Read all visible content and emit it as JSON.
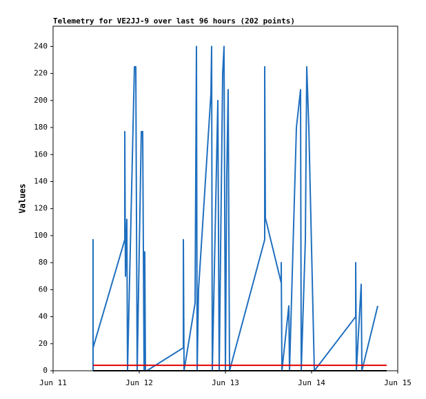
{
  "chart_data": {
    "type": "line",
    "title": "Telemetry for VE2JJ-9 over last 96 hours (202 points)",
    "y_label": "Values",
    "xlim": [
      11,
      15
    ],
    "xticks": [
      {
        "value": 11,
        "label": "Jun 11"
      },
      {
        "value": 12,
        "label": "Jun 12"
      },
      {
        "value": 13,
        "label": "Jun 13"
      },
      {
        "value": 14,
        "label": "Jun 14"
      },
      {
        "value": 15,
        "label": "Jun 15"
      }
    ],
    "ylim": [
      0,
      255
    ],
    "yticks": [
      0,
      20,
      40,
      60,
      80,
      100,
      120,
      140,
      160,
      180,
      200,
      220,
      240
    ],
    "grid": false,
    "series": [
      {
        "color": "#1f6fbf",
        "x": [
          11.464,
          11.464,
          11.464,
          11.832,
          11.832,
          11.84,
          11.856,
          11.864,
          11.944,
          11.96,
          11.976,
          12.024,
          12.04,
          12.056,
          12.064,
          12.072,
          12.088,
          12.512,
          12.512,
          12.52,
          12.648,
          12.664,
          12.672,
          12.688,
          12.832,
          12.84,
          12.848,
          12.912,
          12.928,
          12.968,
          12.984,
          13.0,
          13.016,
          13.032,
          13.048,
          13.456,
          13.456,
          13.464,
          13.648,
          13.648,
          13.656,
          13.736,
          13.744,
          13.824,
          13.872,
          13.88,
          13.928,
          13.944,
          13.968,
          14.032,
          14.512,
          14.512,
          14.52,
          14.576,
          14.584,
          14.768
        ],
        "values": [
          0,
          97,
          17,
          97,
          177,
          70,
          112,
          0,
          225,
          225,
          0,
          177,
          177,
          0,
          88,
          0,
          0,
          17,
          97,
          0,
          50,
          240,
          0,
          60,
          205,
          240,
          0,
          200,
          0,
          220,
          240,
          0,
          145,
          208,
          0,
          97,
          225,
          113,
          65,
          80,
          0,
          48,
          0,
          180,
          208,
          0,
          97,
          225,
          180,
          0,
          40,
          80,
          0,
          64,
          0,
          48
        ]
      },
      {
        "color": "#e00000",
        "x": [
          11.464,
          14.872
        ],
        "values": [
          4,
          4
        ]
      },
      {
        "color": "#000000",
        "x": [
          11.464,
          14.872
        ],
        "values": [
          0,
          0
        ]
      }
    ]
  }
}
